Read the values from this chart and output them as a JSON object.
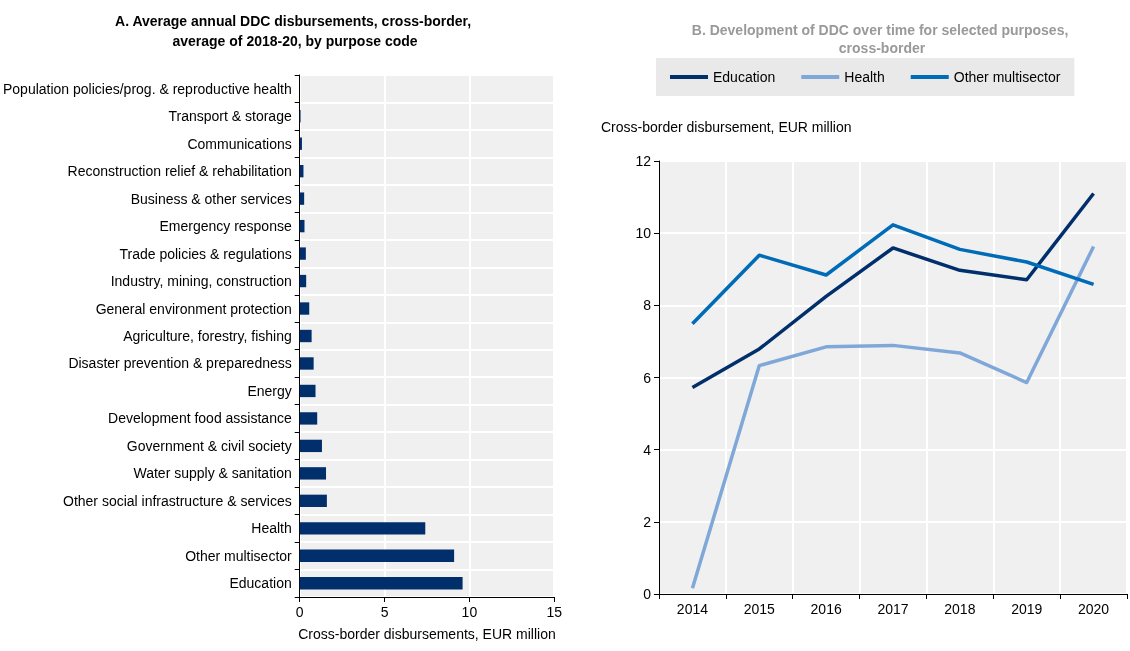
{
  "chart_data": [
    {
      "type": "bar",
      "orientation": "horizontal",
      "title": "A. Average annual DDC disbursements, cross-border, average of 2018-20, by purpose code",
      "xlabel": "Cross-border disbursements, EUR million",
      "categories": [
        "Population policies/prog. & reproductive health",
        "Transport & storage",
        "Communications",
        "Reconstruction relief & rehabilitation",
        "Business & other services",
        "Emergency response",
        "Trade policies & regulations",
        "Industry, mining, construction",
        "General environment protection",
        "Agriculture, forestry, fishing",
        "Disaster prevention & preparedness",
        "Energy",
        "Development food assistance",
        "Government & civil society",
        "Water supply & sanitation",
        "Other social infrastructure & services",
        "Health",
        "Other multisector",
        "Education"
      ],
      "values": [
        null,
        0.05,
        0.13,
        0.22,
        0.26,
        0.28,
        0.36,
        0.38,
        0.56,
        0.7,
        0.82,
        0.93,
        1.03,
        1.31,
        1.55,
        1.6,
        7.4,
        9.1,
        9.6
      ],
      "color": "#002f6c",
      "xlim": [
        0,
        15
      ],
      "xticks": [
        0,
        5,
        10,
        15
      ],
      "grid": true,
      "legend": false
    },
    {
      "type": "line",
      "title": "B. Development of DDC over time for selected purposes, cross-border",
      "ylabel": "Cross-border disbursement, EUR million",
      "categories": [
        "2014",
        "2015",
        "2016",
        "2017",
        "2018",
        "2019",
        "2020"
      ],
      "series": [
        {
          "name": "Education",
          "color": "#002f6c",
          "values": [
            5.72,
            6.79,
            8.25,
            9.59,
            8.97,
            8.71,
            11.1
          ]
        },
        {
          "name": "Health",
          "color": "#7fa8d9",
          "values": [
            0.16,
            6.33,
            6.85,
            6.89,
            6.68,
            5.86,
            9.63
          ]
        },
        {
          "name": "Other multisector",
          "color": "#006bb6",
          "values": [
            7.49,
            9.39,
            8.84,
            10.23,
            9.55,
            9.2,
            8.58
          ]
        }
      ],
      "ylim": [
        0,
        12
      ],
      "yticks": [
        0,
        2,
        4,
        6,
        8,
        10,
        12
      ],
      "grid": true,
      "legend": "top",
      "marker": "none",
      "line_style": "solid"
    }
  ]
}
